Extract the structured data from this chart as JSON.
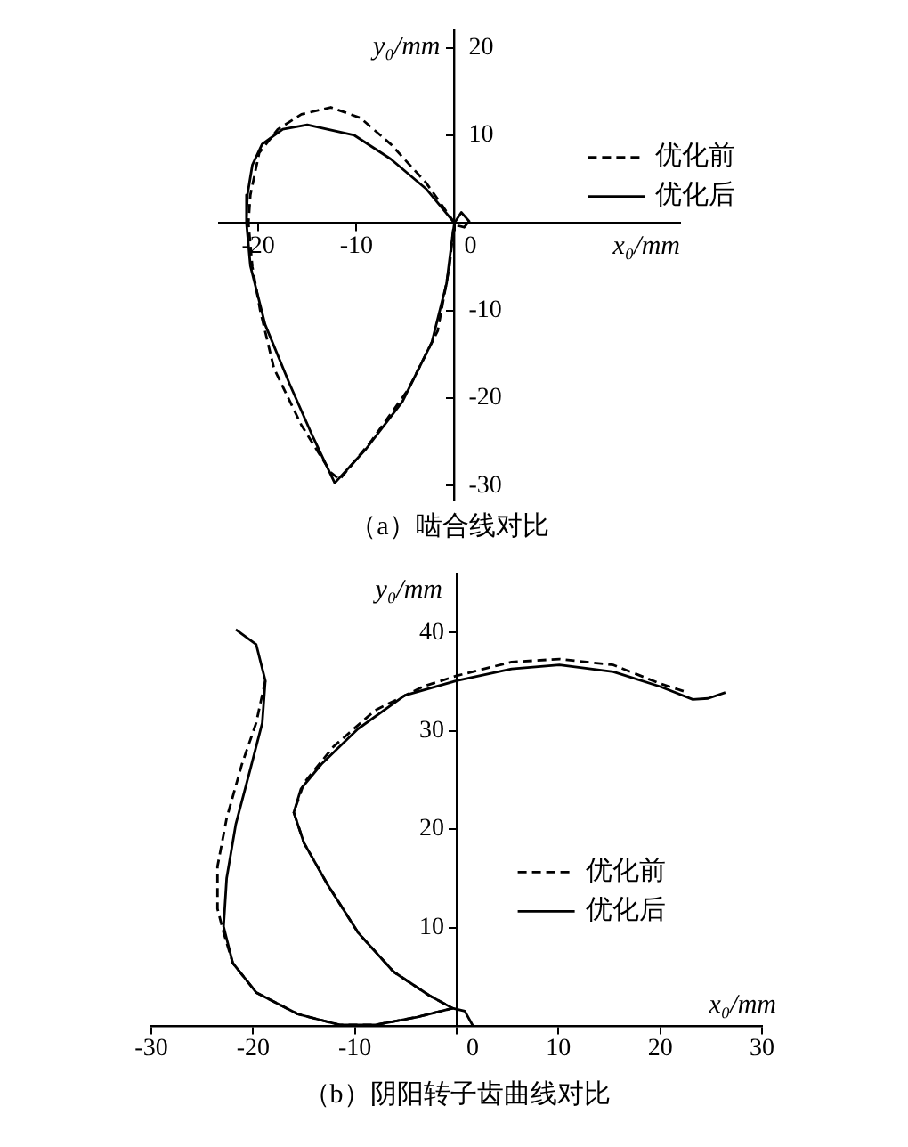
{
  "chart_data": [
    {
      "type": "line",
      "title": "（a）啮合线对比",
      "xlabel": "x₀/mm",
      "ylabel": "y₀/mm",
      "xlim": [
        -24,
        23
      ],
      "ylim": [
        -31.7,
        22
      ],
      "xticks": [
        -20,
        -10,
        0
      ],
      "yticks": [
        -30,
        -20,
        -10,
        10,
        20
      ],
      "grid": false,
      "legend": "top right",
      "marker": "none",
      "series": [
        {
          "name": "优化前",
          "color": "#000000",
          "line_style": "dashed",
          "x": [
            0,
            -2.9,
            -6.5,
            -9.6,
            -12.6,
            -15.6,
            -18,
            -19.9,
            -20.8,
            -21,
            -20.6,
            -19.8,
            -18.4,
            -15.6,
            -12.6,
            -11.7,
            -8.4,
            -4.7,
            -1.7,
            -0.5,
            -0.1
          ],
          "values": [
            0,
            4.6,
            9,
            12,
            13.2,
            12.4,
            10.7,
            8,
            3.2,
            0,
            -5,
            -10,
            -16.6,
            -23.1,
            -28.5,
            -29.3,
            -24.8,
            -19,
            -12.3,
            -4.9,
            -0.6
          ]
        },
        {
          "name": "优化后",
          "color": "#000000",
          "line_style": "solid",
          "x": [
            0,
            -2.9,
            -6.5,
            -10.2,
            -15,
            -17.5,
            -19.6,
            -20.6,
            -21.1,
            -21.2,
            -20.8,
            -19.3,
            -16.8,
            -14.4,
            -12.2,
            -9,
            -5.3,
            -2.3,
            -0.8,
            -0.2,
            0,
            0.7,
            1.5,
            1,
            0.3
          ],
          "values": [
            0,
            3.9,
            7.3,
            10,
            11.2,
            10.7,
            9,
            6.6,
            3.2,
            0,
            -4.9,
            -11.6,
            -18.4,
            -24.5,
            -29.7,
            -25.8,
            -20.4,
            -13.6,
            -6.9,
            -1.5,
            0,
            1.2,
            0.2,
            -0.5,
            -0.3
          ]
        }
      ]
    },
    {
      "type": "line",
      "title": "（b）阴阳转子齿曲线对比",
      "xlabel": "x₀/mm",
      "ylabel": "y₀/mm",
      "xlim": [
        -30,
        30
      ],
      "ylim": [
        0,
        46
      ],
      "xticks": [
        -30,
        -20,
        -10,
        0,
        10,
        20,
        30
      ],
      "yticks": [
        10,
        20,
        30,
        40
      ],
      "grid": false,
      "legend": "right",
      "marker": "none",
      "series": [
        {
          "name": "优化前",
          "color": "#000000",
          "line_style": "dashed",
          "x": [
            -18.8,
            -19.7,
            -21.1,
            -22.6,
            -23.5,
            -23.5,
            -22.9,
            -22,
            -19.7,
            -15.6,
            -11.5,
            -8,
            -3.9,
            -0.4,
            -2.7,
            -6.2,
            -9.7,
            -12.7,
            -15,
            -16,
            -15,
            -12.1,
            -8,
            -3.3,
            0,
            5.4,
            10.1,
            15.4,
            20,
            22.7
          ],
          "values": [
            35.1,
            30.8,
            26.6,
            21.1,
            16.2,
            11.9,
            9.5,
            6.4,
            3.4,
            1.2,
            0.1,
            0.1,
            0.9,
            1.8,
            3.1,
            5.5,
            9.5,
            14.4,
            18.6,
            21.7,
            24.7,
            28.4,
            32.1,
            34.5,
            35.6,
            37,
            37.3,
            36.7,
            34.8,
            33.9
          ]
        },
        {
          "name": "优化后",
          "color": "#000000",
          "line_style": "solid",
          "x": [
            -21.7,
            -19.7,
            -18.8,
            -19.1,
            -20.3,
            -21.7,
            -22.6,
            -22.9,
            -22,
            -19.7,
            -15.6,
            -11.5,
            -8,
            -3.9,
            -0.4,
            0.8,
            1.6,
            0.6,
            -0.4,
            -2.7,
            -6.2,
            -9.7,
            -12.7,
            -15,
            -16,
            -15.3,
            -13.3,
            -9.7,
            -5.1,
            0,
            5.4,
            10.1,
            15.4,
            20,
            23.2,
            24.7,
            26.4
          ],
          "values": [
            40.3,
            38.8,
            35.1,
            30.8,
            26,
            20.5,
            15,
            10.1,
            6.4,
            3.4,
            1.2,
            0.1,
            0.1,
            0.9,
            1.8,
            1.5,
            0,
            null,
            1.8,
            3.1,
            5.5,
            9.5,
            14.4,
            18.6,
            21.7,
            24.1,
            26.6,
            30.2,
            33.6,
            35.1,
            36.3,
            36.7,
            36,
            34.5,
            33.2,
            33.3,
            33.9
          ]
        }
      ]
    }
  ]
}
